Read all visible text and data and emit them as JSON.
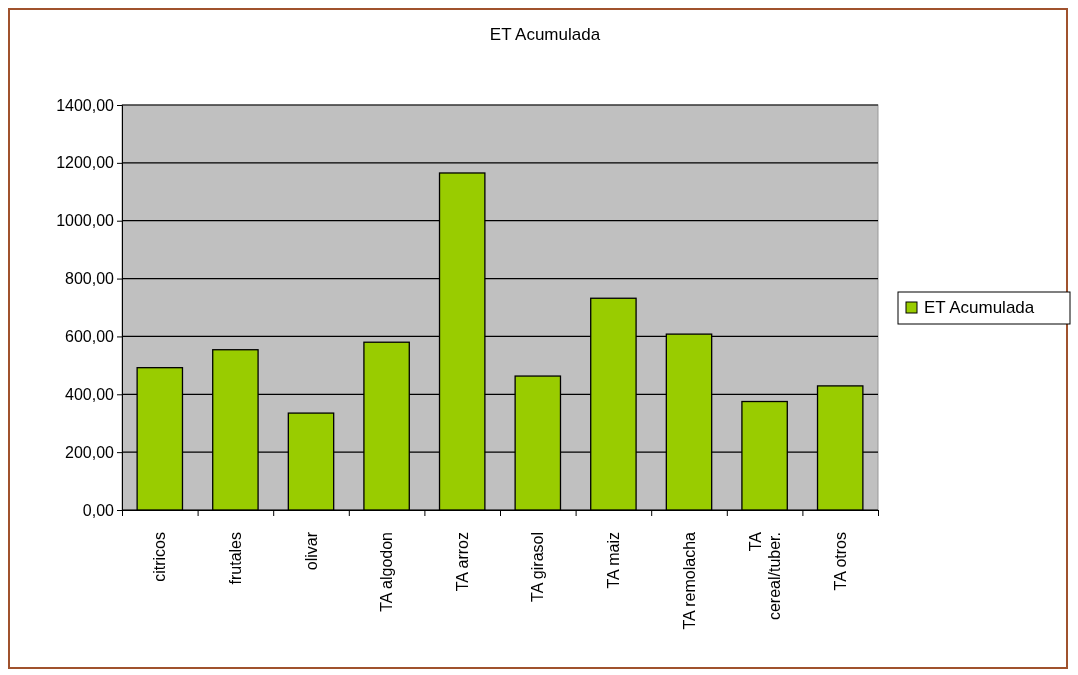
{
  "chart_data": {
    "type": "bar",
    "title": "ET Acumulada",
    "categories": [
      "citricos",
      "frutales",
      "olivar",
      "TA algodon",
      "TA arroz",
      "TA girasol",
      "TA maiz",
      "TA remolacha",
      "TA cereal/tuber.",
      "TA otros"
    ],
    "series": [
      {
        "name": "ET Acumulada",
        "color": "#99cc00",
        "values": [
          492,
          554,
          335,
          580,
          1165,
          463,
          732,
          608,
          375,
          429
        ]
      }
    ],
    "ylim": [
      0,
      1400
    ],
    "yticks": [
      {
        "value": 0,
        "label": "0,00"
      },
      {
        "value": 200,
        "label": "200,00"
      },
      {
        "value": 400,
        "label": "400,00"
      },
      {
        "value": 600,
        "label": "600,00"
      },
      {
        "value": 800,
        "label": "800,00"
      },
      {
        "value": 1000,
        "label": "1000,00"
      },
      {
        "value": 1200,
        "label": "1200,00"
      },
      {
        "value": 1400,
        "label": "1400,00"
      }
    ],
    "grid": "y",
    "legend": "right"
  }
}
